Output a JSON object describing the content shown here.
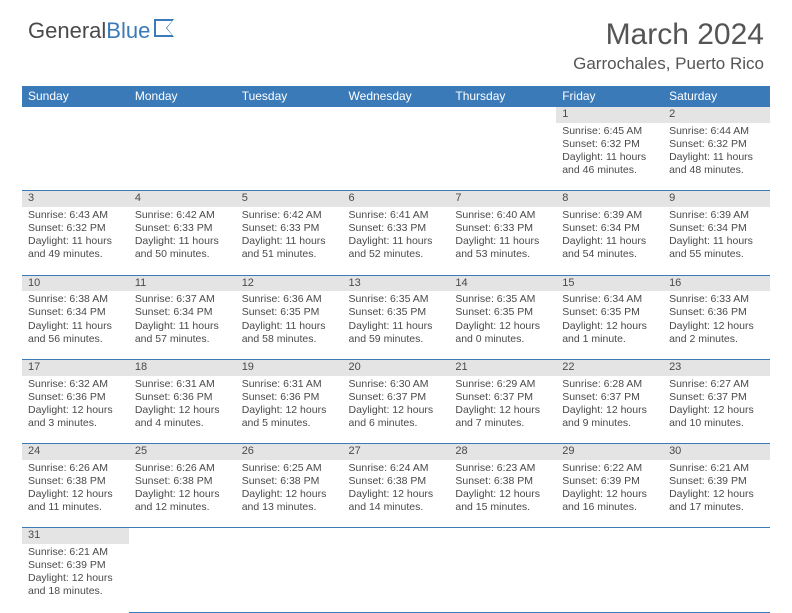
{
  "brand": {
    "name1": "General",
    "name2": "Blue"
  },
  "title": "March 2024",
  "location": "Garrochales, Puerto Rico",
  "colors": {
    "header_bg": "#3b7ab8",
    "header_text": "#ffffff",
    "daynum_bg": "#e4e4e4",
    "border": "#3b7ab8",
    "text": "#4a4a4a",
    "page_bg": "#ffffff"
  },
  "grid": {
    "columns": 7,
    "rows": 6,
    "first_weekday_index": 5,
    "days_in_month": 31
  },
  "weekdays": [
    "Sunday",
    "Monday",
    "Tuesday",
    "Wednesday",
    "Thursday",
    "Friday",
    "Saturday"
  ],
  "labels": {
    "sunrise": "Sunrise",
    "sunset": "Sunset",
    "daylight": "Daylight"
  },
  "days": [
    {
      "n": 1,
      "sunrise": "6:45 AM",
      "sunset": "6:32 PM",
      "daylight": "11 hours and 46 minutes."
    },
    {
      "n": 2,
      "sunrise": "6:44 AM",
      "sunset": "6:32 PM",
      "daylight": "11 hours and 48 minutes."
    },
    {
      "n": 3,
      "sunrise": "6:43 AM",
      "sunset": "6:32 PM",
      "daylight": "11 hours and 49 minutes."
    },
    {
      "n": 4,
      "sunrise": "6:42 AM",
      "sunset": "6:33 PM",
      "daylight": "11 hours and 50 minutes."
    },
    {
      "n": 5,
      "sunrise": "6:42 AM",
      "sunset": "6:33 PM",
      "daylight": "11 hours and 51 minutes."
    },
    {
      "n": 6,
      "sunrise": "6:41 AM",
      "sunset": "6:33 PM",
      "daylight": "11 hours and 52 minutes."
    },
    {
      "n": 7,
      "sunrise": "6:40 AM",
      "sunset": "6:33 PM",
      "daylight": "11 hours and 53 minutes."
    },
    {
      "n": 8,
      "sunrise": "6:39 AM",
      "sunset": "6:34 PM",
      "daylight": "11 hours and 54 minutes."
    },
    {
      "n": 9,
      "sunrise": "6:39 AM",
      "sunset": "6:34 PM",
      "daylight": "11 hours and 55 minutes."
    },
    {
      "n": 10,
      "sunrise": "6:38 AM",
      "sunset": "6:34 PM",
      "daylight": "11 hours and 56 minutes."
    },
    {
      "n": 11,
      "sunrise": "6:37 AM",
      "sunset": "6:34 PM",
      "daylight": "11 hours and 57 minutes."
    },
    {
      "n": 12,
      "sunrise": "6:36 AM",
      "sunset": "6:35 PM",
      "daylight": "11 hours and 58 minutes."
    },
    {
      "n": 13,
      "sunrise": "6:35 AM",
      "sunset": "6:35 PM",
      "daylight": "11 hours and 59 minutes."
    },
    {
      "n": 14,
      "sunrise": "6:35 AM",
      "sunset": "6:35 PM",
      "daylight": "12 hours and 0 minutes."
    },
    {
      "n": 15,
      "sunrise": "6:34 AM",
      "sunset": "6:35 PM",
      "daylight": "12 hours and 1 minute."
    },
    {
      "n": 16,
      "sunrise": "6:33 AM",
      "sunset": "6:36 PM",
      "daylight": "12 hours and 2 minutes."
    },
    {
      "n": 17,
      "sunrise": "6:32 AM",
      "sunset": "6:36 PM",
      "daylight": "12 hours and 3 minutes."
    },
    {
      "n": 18,
      "sunrise": "6:31 AM",
      "sunset": "6:36 PM",
      "daylight": "12 hours and 4 minutes."
    },
    {
      "n": 19,
      "sunrise": "6:31 AM",
      "sunset": "6:36 PM",
      "daylight": "12 hours and 5 minutes."
    },
    {
      "n": 20,
      "sunrise": "6:30 AM",
      "sunset": "6:37 PM",
      "daylight": "12 hours and 6 minutes."
    },
    {
      "n": 21,
      "sunrise": "6:29 AM",
      "sunset": "6:37 PM",
      "daylight": "12 hours and 7 minutes."
    },
    {
      "n": 22,
      "sunrise": "6:28 AM",
      "sunset": "6:37 PM",
      "daylight": "12 hours and 9 minutes."
    },
    {
      "n": 23,
      "sunrise": "6:27 AM",
      "sunset": "6:37 PM",
      "daylight": "12 hours and 10 minutes."
    },
    {
      "n": 24,
      "sunrise": "6:26 AM",
      "sunset": "6:38 PM",
      "daylight": "12 hours and 11 minutes."
    },
    {
      "n": 25,
      "sunrise": "6:26 AM",
      "sunset": "6:38 PM",
      "daylight": "12 hours and 12 minutes."
    },
    {
      "n": 26,
      "sunrise": "6:25 AM",
      "sunset": "6:38 PM",
      "daylight": "12 hours and 13 minutes."
    },
    {
      "n": 27,
      "sunrise": "6:24 AM",
      "sunset": "6:38 PM",
      "daylight": "12 hours and 14 minutes."
    },
    {
      "n": 28,
      "sunrise": "6:23 AM",
      "sunset": "6:38 PM",
      "daylight": "12 hours and 15 minutes."
    },
    {
      "n": 29,
      "sunrise": "6:22 AM",
      "sunset": "6:39 PM",
      "daylight": "12 hours and 16 minutes."
    },
    {
      "n": 30,
      "sunrise": "6:21 AM",
      "sunset": "6:39 PM",
      "daylight": "12 hours and 17 minutes."
    },
    {
      "n": 31,
      "sunrise": "6:21 AM",
      "sunset": "6:39 PM",
      "daylight": "12 hours and 18 minutes."
    }
  ]
}
